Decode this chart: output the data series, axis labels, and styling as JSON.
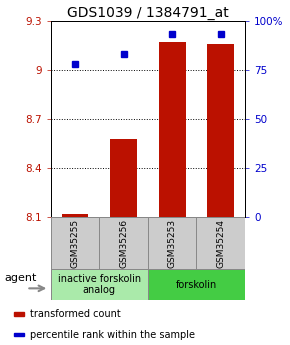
{
  "title": "GDS1039 / 1384791_at",
  "samples": [
    "GSM35255",
    "GSM35256",
    "GSM35253",
    "GSM35254"
  ],
  "bar_values": [
    8.12,
    8.58,
    9.17,
    9.16
  ],
  "scatter_values": [
    78,
    83,
    93,
    93
  ],
  "bar_color": "#bb1100",
  "scatter_color": "#0000cc",
  "ylim_left": [
    8.1,
    9.3
  ],
  "ylim_right": [
    0,
    100
  ],
  "yticks_left": [
    8.1,
    8.4,
    8.7,
    9.0,
    9.3
  ],
  "yticks_right": [
    0,
    25,
    50,
    75,
    100
  ],
  "ytick_labels_left": [
    "8.1",
    "8.4",
    "8.7",
    "9",
    "9.3"
  ],
  "ytick_labels_right": [
    "0",
    "25",
    "50",
    "75",
    "100%"
  ],
  "grid_yticks": [
    9.0,
    8.7,
    8.4
  ],
  "groups": [
    {
      "label": "inactive forskolin\nanalog",
      "indices": [
        0,
        1
      ],
      "color": "#aaeaaa"
    },
    {
      "label": "forskolin",
      "indices": [
        2,
        3
      ],
      "color": "#44cc44"
    }
  ],
  "agent_label": "agent",
  "legend_items": [
    {
      "color": "#bb1100",
      "label": "transformed count"
    },
    {
      "color": "#0000cc",
      "label": "percentile rank within the sample"
    }
  ],
  "bar_width": 0.55,
  "title_fontsize": 10,
  "tick_fontsize": 7.5,
  "sample_fontsize": 6.5,
  "group_fontsize": 7,
  "legend_fontsize": 7,
  "agent_fontsize": 8
}
